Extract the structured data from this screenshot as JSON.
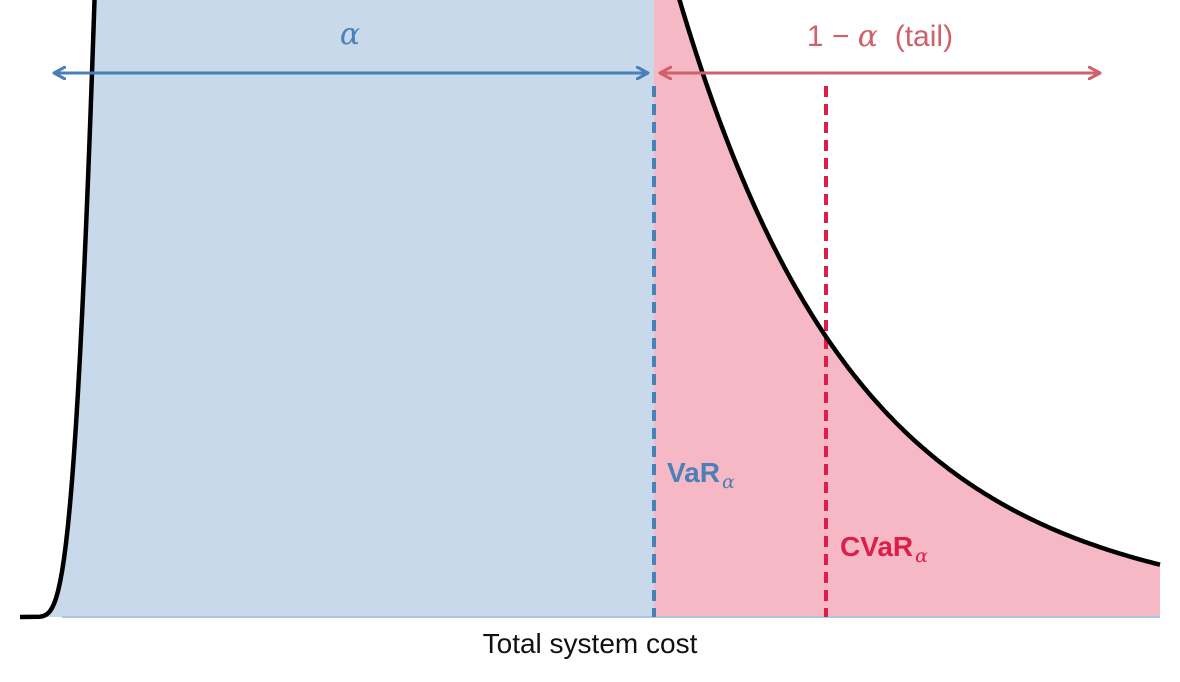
{
  "labels": {
    "alpha": "α",
    "tail_prefix": "1 − ",
    "tail_alpha": "α",
    "tail_suffix": "  (tail)",
    "var_main": "VaR",
    "var_sub": "α",
    "cvar_main": "CVaR",
    "cvar_sub": "α",
    "x_axis": "Total system cost"
  },
  "colors": {
    "body_fill": "#c7d9ea",
    "tail_fill": "#f5b8c4",
    "curve": "#000000",
    "var_line": "#4a80b8",
    "cvar_line": "#dc1e48",
    "alpha_label": "#4a80b8",
    "tail_label": "#d0606a",
    "var_label": "#4a80b8",
    "cvar_label": "#dc1e48",
    "axis_text": "#111111"
  },
  "icons": {
    "alpha_arrow": "double-headed-arrow",
    "tail_arrow": "double-headed-arrow"
  }
}
